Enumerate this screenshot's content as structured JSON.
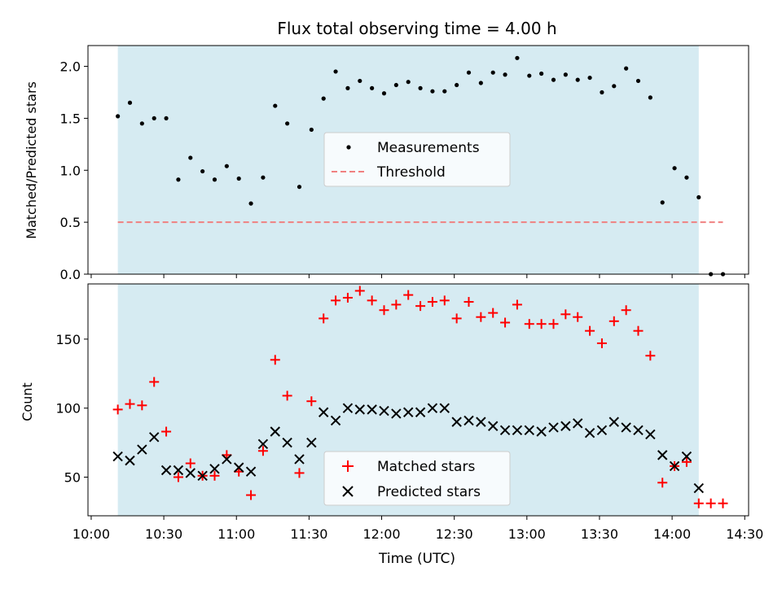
{
  "chart_data": [
    {
      "type": "scatter",
      "title": "Flux total observing time = 4.00 h",
      "xlabel": "",
      "ylabel": "Matched/Predicted stars",
      "ylim": [
        0,
        2.2
      ],
      "yticks": [
        "0.0",
        "0.5",
        "1.0",
        "1.5",
        "2.0"
      ],
      "observing_window": [
        "10:11",
        "14:11"
      ],
      "legend": {
        "position": "center",
        "entries": [
          "Measurements",
          "Threshold"
        ]
      },
      "threshold": {
        "name": "Threshold",
        "value": 0.5,
        "x": [
          "10:11",
          "14:21"
        ],
        "color": "#f08080",
        "style": "dashed"
      },
      "series": [
        {
          "name": "Measurements",
          "color": "#000000",
          "marker": "dot",
          "points": [
            [
              "10:11",
              1.52
            ],
            [
              "10:16",
              1.65
            ],
            [
              "10:21",
              1.45
            ],
            [
              "10:26",
              1.5
            ],
            [
              "10:31",
              1.5
            ],
            [
              "10:36",
              0.91
            ],
            [
              "10:41",
              1.12
            ],
            [
              "10:46",
              0.99
            ],
            [
              "10:51",
              0.91
            ],
            [
              "10:56",
              1.04
            ],
            [
              "11:01",
              0.92
            ],
            [
              "11:06",
              0.68
            ],
            [
              "11:11",
              0.93
            ],
            [
              "11:16",
              1.62
            ],
            [
              "11:21",
              1.45
            ],
            [
              "11:26",
              0.84
            ],
            [
              "11:31",
              1.39
            ],
            [
              "11:36",
              1.69
            ],
            [
              "11:41",
              1.95
            ],
            [
              "11:46",
              1.79
            ],
            [
              "11:51",
              1.86
            ],
            [
              "11:56",
              1.79
            ],
            [
              "12:01",
              1.74
            ],
            [
              "12:06",
              1.82
            ],
            [
              "12:11",
              1.85
            ],
            [
              "12:16",
              1.79
            ],
            [
              "12:21",
              1.76
            ],
            [
              "12:26",
              1.76
            ],
            [
              "12:31",
              1.82
            ],
            [
              "12:36",
              1.94
            ],
            [
              "12:41",
              1.84
            ],
            [
              "12:46",
              1.94
            ],
            [
              "12:51",
              1.92
            ],
            [
              "12:56",
              2.08
            ],
            [
              "13:01",
              1.91
            ],
            [
              "13:06",
              1.93
            ],
            [
              "13:11",
              1.87
            ],
            [
              "13:16",
              1.92
            ],
            [
              "13:21",
              1.87
            ],
            [
              "13:26",
              1.89
            ],
            [
              "13:31",
              1.75
            ],
            [
              "13:36",
              1.81
            ],
            [
              "13:41",
              1.98
            ],
            [
              "13:46",
              1.86
            ],
            [
              "13:51",
              1.7
            ],
            [
              "13:56",
              0.69
            ],
            [
              "14:01",
              1.02
            ],
            [
              "14:06",
              0.93
            ],
            [
              "14:11",
              0.74
            ],
            [
              "14:16",
              0.0
            ],
            [
              "14:21",
              0.0
            ]
          ]
        }
      ]
    },
    {
      "type": "scatter",
      "title": "",
      "xlabel": "Time (UTC)",
      "ylabel": "Count",
      "ylim": [
        22,
        190
      ],
      "yticks": [
        "50",
        "100",
        "150"
      ],
      "xticks": [
        "10:00",
        "10:30",
        "11:00",
        "11:30",
        "12:00",
        "12:30",
        "13:00",
        "13:30",
        "14:00",
        "14:30"
      ],
      "observing_window": [
        "10:11",
        "14:11"
      ],
      "legend": {
        "position": "lower center",
        "entries": [
          "Matched stars",
          "Predicted stars"
        ]
      },
      "series": [
        {
          "name": "Matched stars",
          "color": "#ff0000",
          "marker": "plus",
          "points": [
            [
              "10:11",
              99
            ],
            [
              "10:16",
              103
            ],
            [
              "10:21",
              102
            ],
            [
              "10:26",
              119
            ],
            [
              "10:31",
              83
            ],
            [
              "10:36",
              50
            ],
            [
              "10:41",
              60
            ],
            [
              "10:46",
              51
            ],
            [
              "10:51",
              51
            ],
            [
              "10:56",
              66
            ],
            [
              "11:01",
              54
            ],
            [
              "11:06",
              37
            ],
            [
              "11:11",
              69
            ],
            [
              "11:16",
              135
            ],
            [
              "11:21",
              109
            ],
            [
              "11:26",
              53
            ],
            [
              "11:31",
              105
            ],
            [
              "11:36",
              165
            ],
            [
              "11:41",
              178
            ],
            [
              "11:46",
              180
            ],
            [
              "11:51",
              185
            ],
            [
              "11:56",
              178
            ],
            [
              "12:01",
              171
            ],
            [
              "12:06",
              175
            ],
            [
              "12:11",
              182
            ],
            [
              "12:16",
              174
            ],
            [
              "12:21",
              177
            ],
            [
              "12:26",
              178
            ],
            [
              "12:31",
              165
            ],
            [
              "12:36",
              177
            ],
            [
              "12:41",
              166
            ],
            [
              "12:46",
              169
            ],
            [
              "12:51",
              162
            ],
            [
              "12:56",
              175
            ],
            [
              "13:01",
              161
            ],
            [
              "13:06",
              161
            ],
            [
              "13:11",
              161
            ],
            [
              "13:16",
              168
            ],
            [
              "13:21",
              166
            ],
            [
              "13:26",
              156
            ],
            [
              "13:31",
              147
            ],
            [
              "13:36",
              163
            ],
            [
              "13:41",
              171
            ],
            [
              "13:46",
              156
            ],
            [
              "13:51",
              138
            ],
            [
              "13:56",
              46
            ],
            [
              "14:01",
              58
            ],
            [
              "14:06",
              61
            ],
            [
              "14:11",
              31
            ],
            [
              "14:16",
              31
            ],
            [
              "14:21",
              31
            ]
          ]
        },
        {
          "name": "Predicted stars",
          "color": "#000000",
          "marker": "x",
          "points": [
            [
              "10:11",
              65
            ],
            [
              "10:16",
              62
            ],
            [
              "10:21",
              70
            ],
            [
              "10:26",
              79
            ],
            [
              "10:31",
              55
            ],
            [
              "10:36",
              55
            ],
            [
              "10:41",
              53
            ],
            [
              "10:46",
              51
            ],
            [
              "10:51",
              56
            ],
            [
              "10:56",
              63
            ],
            [
              "11:01",
              57
            ],
            [
              "11:06",
              54
            ],
            [
              "11:11",
              74
            ],
            [
              "11:16",
              83
            ],
            [
              "11:21",
              75
            ],
            [
              "11:26",
              63
            ],
            [
              "11:31",
              75
            ],
            [
              "11:36",
              97
            ],
            [
              "11:41",
              91
            ],
            [
              "11:46",
              100
            ],
            [
              "11:51",
              99
            ],
            [
              "11:56",
              99
            ],
            [
              "12:01",
              98
            ],
            [
              "12:06",
              96
            ],
            [
              "12:11",
              97
            ],
            [
              "12:16",
              97
            ],
            [
              "12:21",
              100
            ],
            [
              "12:26",
              100
            ],
            [
              "12:31",
              90
            ],
            [
              "12:36",
              91
            ],
            [
              "12:41",
              90
            ],
            [
              "12:46",
              87
            ],
            [
              "12:51",
              84
            ],
            [
              "12:56",
              84
            ],
            [
              "13:01",
              84
            ],
            [
              "13:06",
              83
            ],
            [
              "13:11",
              86
            ],
            [
              "13:16",
              87
            ],
            [
              "13:21",
              89
            ],
            [
              "13:26",
              82
            ],
            [
              "13:31",
              84
            ],
            [
              "13:36",
              90
            ],
            [
              "13:41",
              86
            ],
            [
              "13:46",
              84
            ],
            [
              "13:51",
              81
            ],
            [
              "13:56",
              66
            ],
            [
              "14:01",
              58
            ],
            [
              "14:06",
              65
            ],
            [
              "14:11",
              42
            ]
          ]
        }
      ]
    }
  ]
}
